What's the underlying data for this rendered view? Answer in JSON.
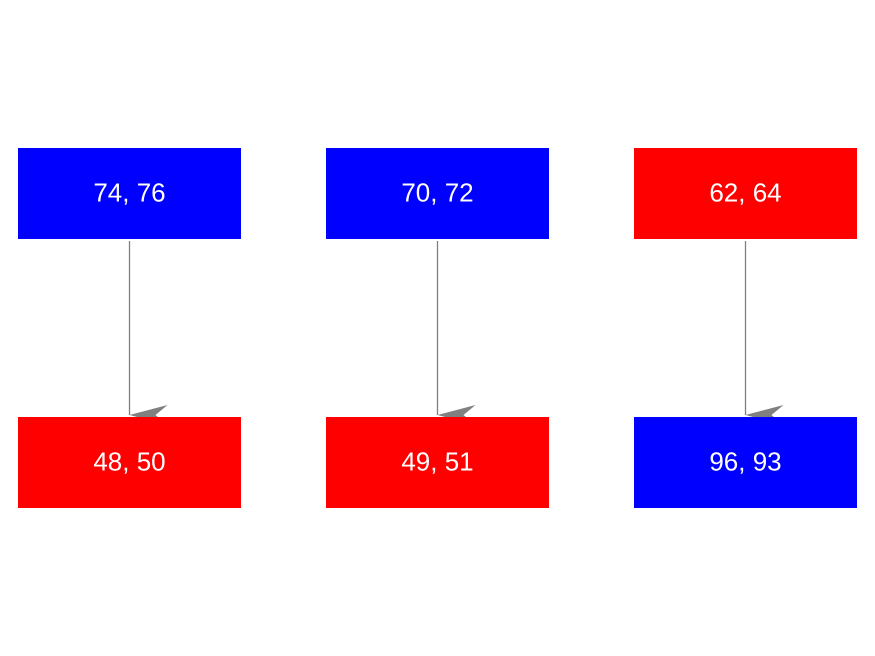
{
  "columns": [
    {
      "top": {
        "label": "74, 76",
        "color": "#0000ff"
      },
      "bottom": {
        "label": "48, 50",
        "color": "#ff0000"
      }
    },
    {
      "top": {
        "label": "70, 72",
        "color": "#0000ff"
      },
      "bottom": {
        "label": "49, 51",
        "color": "#ff0000"
      }
    },
    {
      "top": {
        "label": "62, 64",
        "color": "#ff0000"
      },
      "bottom": {
        "label": "96, 93",
        "color": "#0000ff"
      }
    }
  ]
}
